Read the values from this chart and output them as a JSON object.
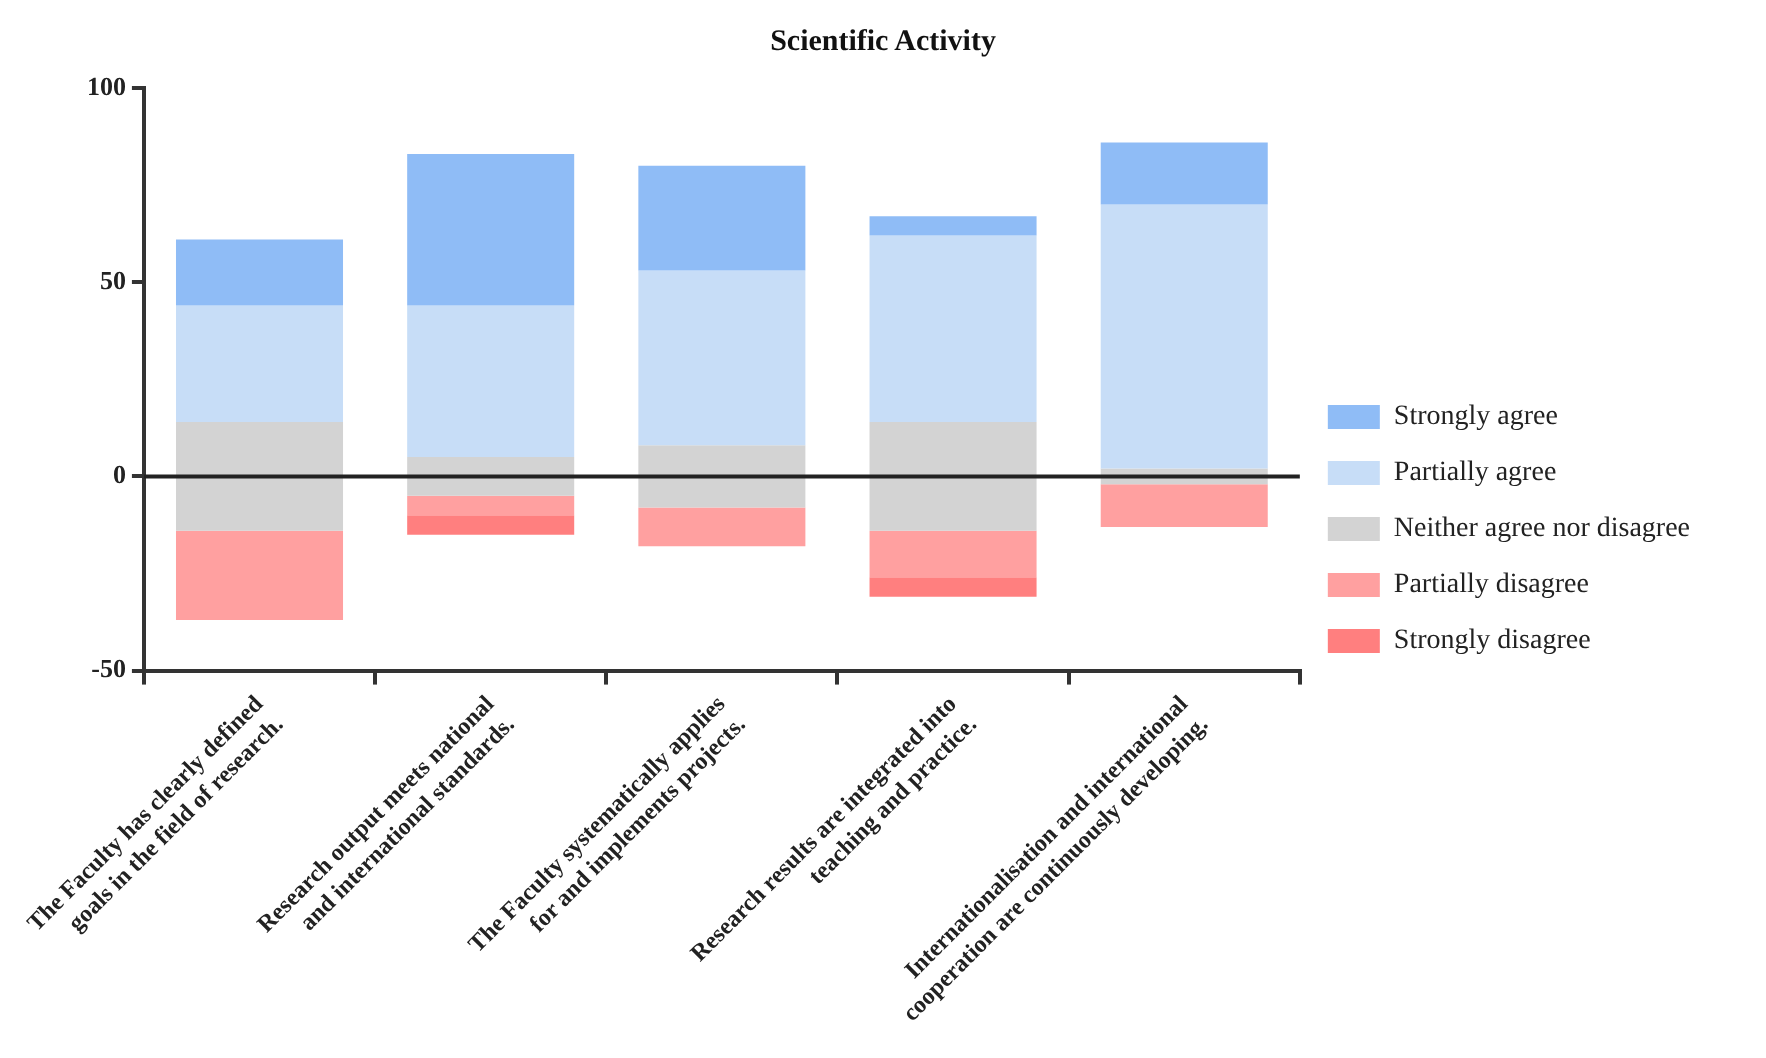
{
  "chart_data": {
    "type": "bar",
    "title": "Scientific Activity",
    "categories": [
      "The Faculty has clearly defined\ngoals in the field of research.",
      "Research output meets national\nand international standards.",
      "The Faculty systematically applies\nfor and implements projects.",
      "Research results are integrated into\nteaching and practice.",
      "Internationalisation and international\ncooperation are continuously developing."
    ],
    "series": [
      {
        "name": "Strongly agree",
        "color": "#8fbcf6",
        "base": [
          44,
          44,
          53,
          62,
          70
        ],
        "values": [
          17,
          39,
          27,
          5,
          16
        ]
      },
      {
        "name": "Partially agree",
        "color": "#c7ddf7",
        "base": [
          14,
          5,
          8,
          14,
          2
        ],
        "values": [
          30,
          39,
          45,
          48,
          68
        ]
      },
      {
        "name": "Neither agree nor disagree",
        "color": "#d3d3d3",
        "base": [
          -14,
          -5,
          -8,
          -14,
          -2
        ],
        "values": [
          28,
          10,
          16,
          28,
          4
        ]
      },
      {
        "name": "Partially disagree",
        "color": "#ffa0a0",
        "base": [
          -37,
          -10,
          -18,
          -26,
          -13
        ],
        "values": [
          23,
          5,
          10,
          12,
          11
        ]
      },
      {
        "name": "Strongly disagree",
        "color": "#ff7f7f",
        "base": [
          null,
          -15,
          null,
          -31,
          null
        ],
        "values": [
          null,
          5,
          null,
          5,
          null
        ]
      }
    ],
    "ylim": [
      -50,
      100
    ],
    "yticks": [
      -50,
      0,
      50,
      100
    ],
    "ref_lines": [
      {
        "axis": "y",
        "value": 0
      }
    ],
    "grid": false,
    "legend": "right"
  }
}
